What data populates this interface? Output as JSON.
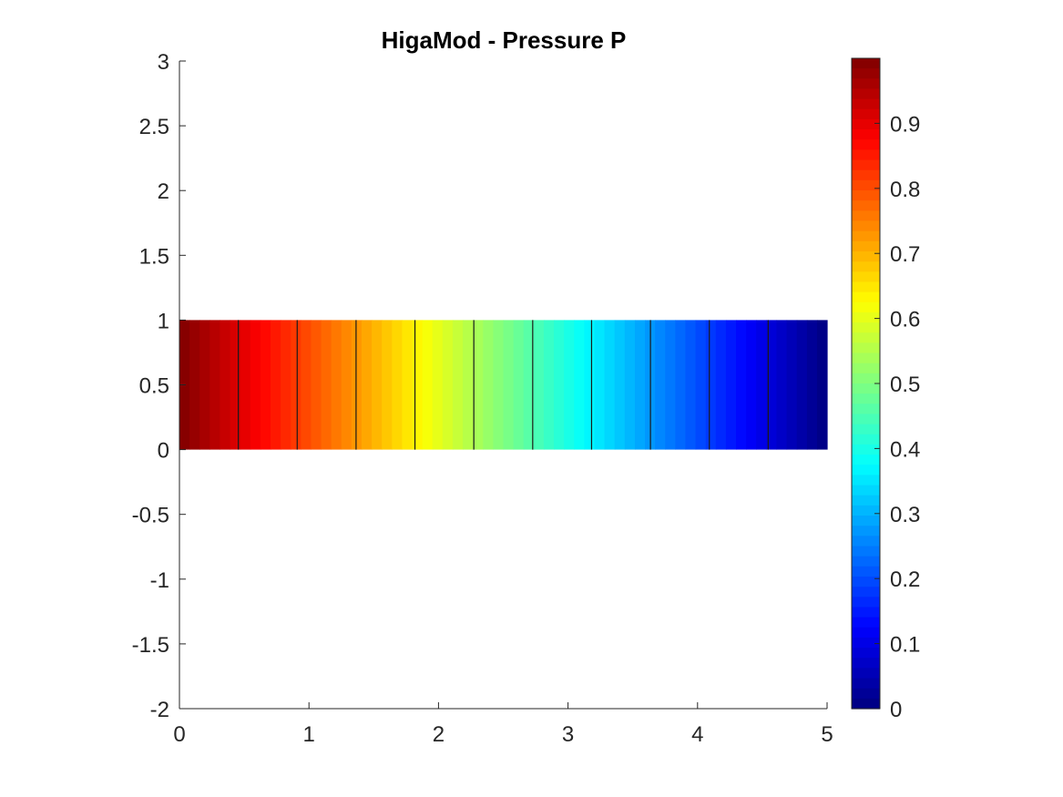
{
  "chart_data": {
    "type": "heatmap",
    "title": "HigaMod - Pressure P",
    "xlabel": "",
    "ylabel": "",
    "xlim": [
      0,
      5
    ],
    "ylim": [
      -2,
      3
    ],
    "x_ticks": [
      "0",
      "1",
      "2",
      "3",
      "4",
      "5"
    ],
    "y_ticks": [
      "3",
      "2.5",
      "2",
      "1.5",
      "1",
      "0.5",
      "0",
      "-0.5",
      "-1",
      "-1.5",
      "-2"
    ],
    "field": {
      "description_of_values": "pressure decreases linearly from 1 at x=0 to 0 at x=5, uniform in y",
      "x_range": [
        0,
        5
      ],
      "y_range": [
        0,
        1
      ],
      "value_at_x_min": 1,
      "value_at_x_max": 0,
      "color_bands": 64
    },
    "element_boundaries_x": [
      0.4545,
      0.9091,
      1.3636,
      1.8182,
      2.2727,
      2.7273,
      3.1818,
      3.6364,
      4.0909,
      4.5455
    ],
    "colorbar": {
      "colormap": "jet",
      "limits": [
        0,
        1
      ],
      "ticks": [
        "0",
        "0.1",
        "0.2",
        "0.3",
        "0.4",
        "0.5",
        "0.6",
        "0.7",
        "0.8",
        "0.9"
      ],
      "placement": "right"
    },
    "grid": false
  }
}
